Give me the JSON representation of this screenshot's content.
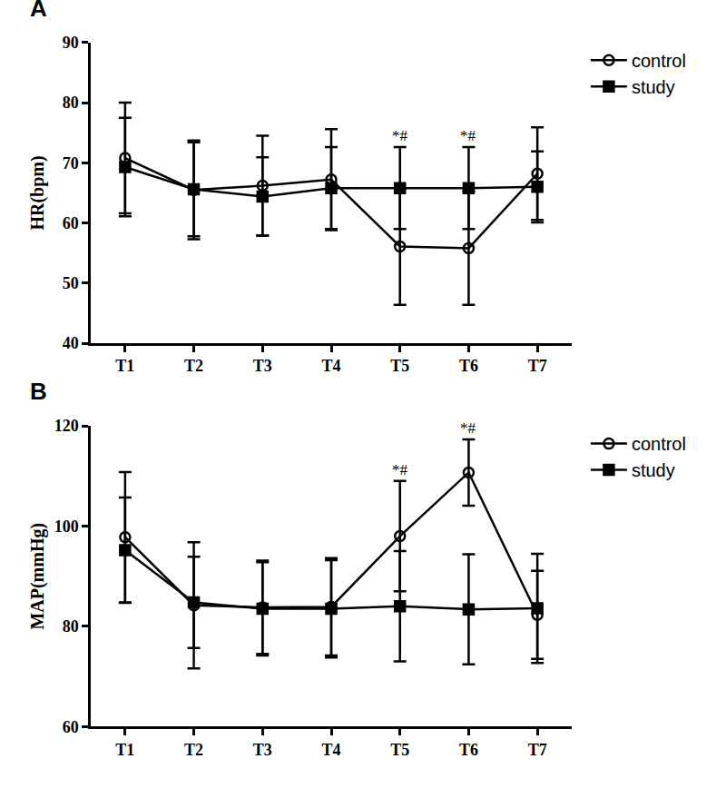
{
  "chart_data": [
    {
      "type": "line",
      "label": "A",
      "y_label": "HR(bpm)",
      "categories": [
        "T1",
        "T2",
        "T3",
        "T4",
        "T5",
        "T6",
        "T7"
      ],
      "ylim": [
        40,
        90
      ],
      "yticks": [
        40,
        50,
        60,
        70,
        80,
        90
      ],
      "grid": false,
      "legend": "top right",
      "series": [
        {
          "name": "control",
          "color": "#000000",
          "marker": "circle-open",
          "values": [
            70.8,
            65.5,
            66.2,
            67.2,
            56.1,
            55.8,
            68.2
          ],
          "errors": [
            9.2,
            8.2,
            8.3,
            8.4,
            9.7,
            9.4,
            7.7
          ]
        },
        {
          "name": "study",
          "color": "#000000",
          "marker": "square",
          "values": [
            69.3,
            65.6,
            64.4,
            65.8,
            65.8,
            65.8,
            66.0
          ],
          "errors": [
            8.2,
            7.8,
            6.5,
            6.8,
            6.8,
            6.8,
            5.9
          ]
        }
      ],
      "annotations": [
        {
          "category": "T5",
          "text": "*#"
        },
        {
          "category": "T6",
          "text": "*#"
        }
      ]
    },
    {
      "type": "line",
      "label": "B",
      "y_label": "MAP(mmHg)",
      "categories": [
        "T1",
        "T2",
        "T3",
        "T4",
        "T5",
        "T6",
        "T7"
      ],
      "ylim": [
        60,
        120
      ],
      "yticks": [
        60,
        80,
        100,
        120
      ],
      "grid": false,
      "legend": "top right",
      "series": [
        {
          "name": "control",
          "color": "#000000",
          "marker": "circle-open",
          "values": [
            97.8,
            84.2,
            83.8,
            83.9,
            98.0,
            110.7,
            82.3
          ],
          "errors": [
            13.0,
            12.6,
            9.3,
            9.7,
            11.0,
            6.6,
            8.8
          ]
        },
        {
          "name": "study",
          "color": "#000000",
          "marker": "square",
          "values": [
            95.2,
            84.8,
            83.5,
            83.5,
            84.0,
            83.4,
            83.6
          ],
          "errors": [
            10.5,
            9.1,
            9.3,
            9.7,
            11.0,
            11.0,
            10.9
          ]
        }
      ],
      "annotations": [
        {
          "category": "T5",
          "text": "*#"
        },
        {
          "category": "T6",
          "text": "*#"
        }
      ]
    }
  ]
}
